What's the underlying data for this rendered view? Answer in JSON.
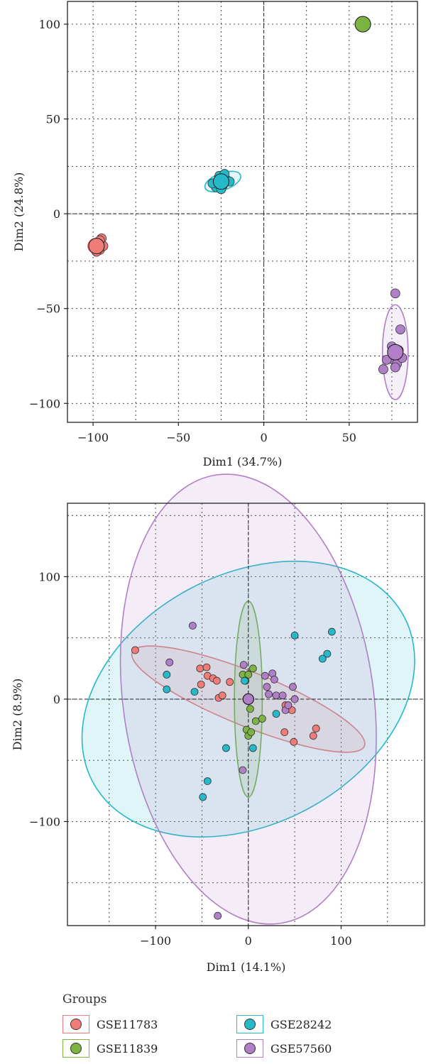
{
  "colors": {
    "GSE11783": "#f07c78",
    "GSE11839": "#7cb342",
    "GSE28242": "#26b9c9",
    "GSE57560": "#b07fc7"
  },
  "chart_data": [
    {
      "type": "scatter",
      "xlabel": "Dim1 (34.7%)",
      "ylabel": "Dim2 (24.8%)",
      "xlim": [
        -115,
        90
      ],
      "ylim": [
        -110,
        112
      ],
      "xticks": [
        -100,
        -50,
        0,
        50
      ],
      "xtick_labels": [
        "−100",
        "−50",
        "0",
        "50"
      ],
      "yticks": [
        -100,
        -50,
        0,
        50,
        100
      ],
      "ytick_labels": [
        "−100",
        "−50",
        "0",
        "50",
        "100"
      ],
      "grid": true,
      "reference_lines": [
        0,
        0
      ],
      "series": [
        {
          "name": "GSE11783",
          "points": [
            [
              -97,
              -15
            ],
            [
              -95,
              -13
            ],
            [
              -96,
              -19
            ],
            [
              -98,
              -20
            ],
            [
              -94,
              -17
            ],
            [
              -99,
              -16
            ],
            [
              -96,
              -14
            ]
          ],
          "centroid": [
            -98,
            -17
          ],
          "ellipse": {
            "center": [
              -98,
              -17
            ],
            "rx": 5,
            "ry": 4,
            "angle": 0
          }
        },
        {
          "name": "GSE11839",
          "points": [
            [
              58,
              100
            ],
            [
              57,
              99
            ],
            [
              59,
              101
            ]
          ],
          "centroid": [
            58,
            100
          ],
          "ellipse": null
        },
        {
          "name": "GSE28242",
          "points": [
            [
              -28,
              14
            ],
            [
              -24,
              15
            ],
            [
              -22,
              18
            ],
            [
              -26,
              20
            ],
            [
              -30,
              16
            ],
            [
              -20,
              17
            ],
            [
              -25,
              13
            ],
            [
              -23,
              21
            ]
          ],
          "centroid": [
            -25,
            17
          ],
          "ellipse": {
            "center": [
              -24,
              17
            ],
            "rx": 11,
            "ry": 4.5,
            "angle": -20
          }
        },
        {
          "name": "GSE57560",
          "points": [
            [
              77,
              -42
            ],
            [
              80,
              -61
            ],
            [
              79,
              -72
            ],
            [
              76,
              -77
            ],
            [
              75,
              -70
            ],
            [
              72,
              -77
            ],
            [
              78,
              -79
            ],
            [
              81,
              -76
            ],
            [
              77,
              -81
            ],
            [
              70,
              -82
            ]
          ],
          "centroid": [
            77,
            -73
          ],
          "ellipse": {
            "center": [
              77,
              -73
            ],
            "rx": 7.5,
            "ry": 25,
            "angle": 0
          }
        }
      ]
    },
    {
      "type": "scatter",
      "xlabel": "Dim1 (14.1%)",
      "ylabel": "Dim2 (8.9%)",
      "xlim": [
        -195,
        190
      ],
      "ylim": [
        -185,
        160
      ],
      "xticks": [
        -100,
        0,
        100
      ],
      "xtick_labels": [
        "−100",
        "0",
        "100"
      ],
      "yticks": [
        -100,
        0,
        100
      ],
      "ytick_labels": [
        "−100",
        "0",
        "100"
      ],
      "minor_grid": [
        -150,
        -50,
        50,
        150
      ],
      "grid": true,
      "reference_lines": [
        0,
        0
      ],
      "series": [
        {
          "name": "GSE11783",
          "points": [
            [
              -122,
              40
            ],
            [
              -52,
              25
            ],
            [
              -45,
              26
            ],
            [
              -44,
              19
            ],
            [
              -38,
              17
            ],
            [
              -34,
              15
            ],
            [
              -20,
              14
            ],
            [
              -51,
              12
            ],
            [
              -32,
              1
            ],
            [
              -28,
              3
            ],
            [
              43,
              -8
            ],
            [
              39,
              -27
            ],
            [
              47,
              -9
            ],
            [
              49,
              -35
            ],
            [
              70,
              -30
            ],
            [
              73,
              -24
            ],
            [
              40,
              -5
            ]
          ],
          "centroid": [
            0,
            0
          ],
          "ellipse": {
            "center": [
              0,
              0
            ],
            "rx": 135,
            "ry": 22,
            "angle": 22
          }
        },
        {
          "name": "GSE11839",
          "points": [
            [
              -6,
              20
            ],
            [
              0,
              20
            ],
            [
              5,
              25
            ],
            [
              -3,
              15
            ],
            [
              8,
              -18
            ],
            [
              15,
              -16
            ],
            [
              2,
              -8
            ],
            [
              -2,
              -25
            ],
            [
              0,
              -30
            ],
            [
              3,
              -27
            ]
          ],
          "centroid": [
            0,
            0
          ],
          "ellipse": {
            "center": [
              0,
              0
            ],
            "rx": 15,
            "ry": 80,
            "angle": 0
          }
        },
        {
          "name": "GSE28242",
          "points": [
            [
              -88,
              20
            ],
            [
              -88,
              8
            ],
            [
              -58,
              6
            ],
            [
              -24,
              -40
            ],
            [
              -44,
              -67
            ],
            [
              -49,
              -80
            ],
            [
              5,
              -40
            ],
            [
              30,
              -12
            ],
            [
              50,
              52
            ],
            [
              90,
              55
            ],
            [
              85,
              37
            ],
            [
              80,
              33
            ],
            [
              -4,
              15
            ]
          ],
          "centroid": [
            0,
            0
          ],
          "ellipse": {
            "center": [
              0,
              0
            ],
            "rx": 190,
            "ry": 102,
            "angle": -28
          }
        },
        {
          "name": "GSE57560",
          "points": [
            [
              -60,
              60
            ],
            [
              -85,
              30
            ],
            [
              -5,
              28
            ],
            [
              18,
              19
            ],
            [
              26,
              21
            ],
            [
              28,
              16
            ],
            [
              20,
              10
            ],
            [
              22,
              4
            ],
            [
              30,
              3
            ],
            [
              37,
              3
            ],
            [
              50,
              0
            ],
            [
              40,
              -9
            ],
            [
              -6,
              -58
            ],
            [
              -33,
              -177
            ],
            [
              48,
              10
            ],
            [
              43,
              -5
            ]
          ],
          "centroid": [
            0,
            0
          ],
          "ellipse": {
            "center": [
              0,
              0
            ],
            "rx": 135,
            "ry": 185,
            "angle": -8
          }
        }
      ]
    }
  ],
  "legend": {
    "title": "Groups",
    "items": [
      "GSE11783",
      "GSE28242",
      "GSE11839",
      "GSE57560"
    ]
  }
}
